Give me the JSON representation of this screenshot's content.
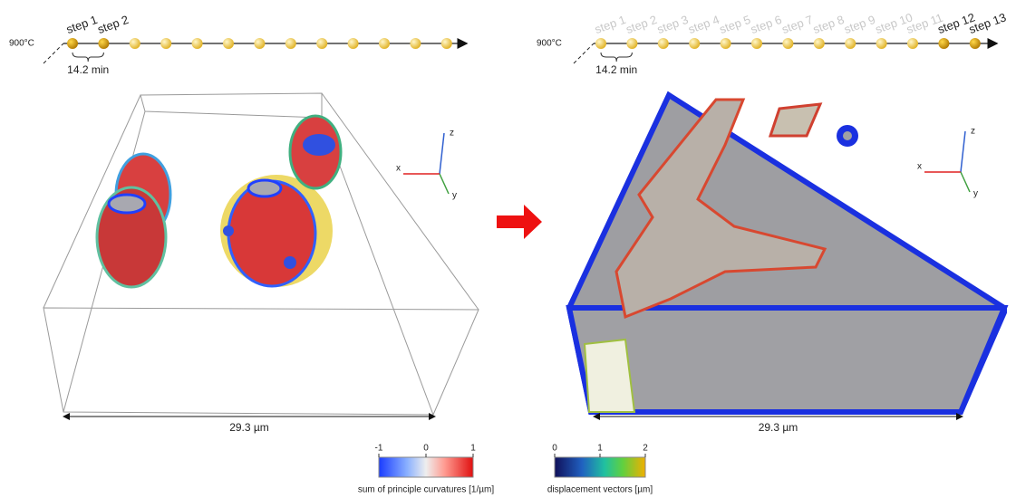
{
  "panels": [
    {
      "temperature": "900°C",
      "steps": [
        "step 1",
        "step 2"
      ],
      "interval": "14.2 min",
      "axes": {
        "x": "x",
        "y": "y",
        "z": "z"
      },
      "scale": "29.3 µm"
    },
    {
      "temperature": "900°C",
      "steps": [
        "step 1",
        "step 2",
        "step 3",
        "step 4",
        "step 5",
        "step 6",
        "step 7",
        "step 8",
        "step 9",
        "step 10",
        "step 11",
        "step 12",
        "step 13"
      ],
      "interval": "14.2 min",
      "axes": {
        "x": "x",
        "y": "y",
        "z": "z"
      },
      "scale": "29.3 µm"
    }
  ],
  "colorbars": [
    {
      "ticks": [
        -1,
        0,
        1
      ],
      "label": "sum of principle curvatures [1/µm]"
    },
    {
      "ticks": [
        0,
        1,
        2
      ],
      "label": "displacement vectors [µm]"
    }
  ]
}
